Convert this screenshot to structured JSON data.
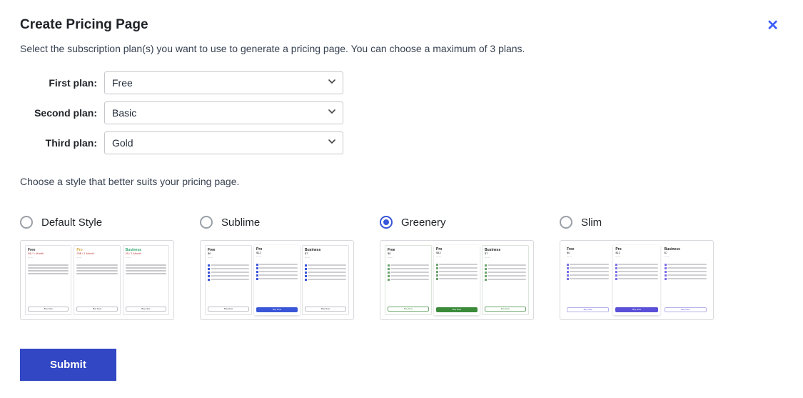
{
  "dialog": {
    "title": "Create Pricing Page",
    "subtitle": "Select the subscription plan(s) you want to use to generate a pricing page. You can choose a maximum of 3 plans.",
    "close_icon": "✕"
  },
  "plans": {
    "rows": [
      {
        "label": "First plan:",
        "value": "Free"
      },
      {
        "label": "Second plan:",
        "value": "Basic"
      },
      {
        "label": "Third plan:",
        "value": "Gold"
      }
    ]
  },
  "style_section": {
    "hint": "Choose a style that better suits your pricing page.",
    "selected_index": 2,
    "options": [
      {
        "label": "Default Style",
        "accent": "#ffffff",
        "card_border": "#e2e2e6",
        "cards": [
          {
            "title": "Free",
            "title_color": "#333333",
            "sub": "0$ / 1 Month",
            "sub_color": "#c23b3b",
            "btn_style": "outline"
          },
          {
            "title": "Pro",
            "title_color": "#d8a63a",
            "sub": "20$ / 1 Month",
            "sub_color": "#c23b3b",
            "btn_style": "outline"
          },
          {
            "title": "Business",
            "title_color": "#2fa56f",
            "sub": "35 / 1 Month",
            "sub_color": "#c23b3b",
            "btn_style": "outline"
          }
        ]
      },
      {
        "label": "Sublime",
        "accent": "#3955d8",
        "card_border": "#e2e2e6",
        "cards": [
          {
            "title": "Free",
            "title_color": "#222222",
            "sub": "$0",
            "sub_color": "#222222",
            "btn_style": "outline",
            "elevated": false
          },
          {
            "title": "Pro",
            "title_color": "#222222",
            "sub": "$12",
            "sub_color": "#222222",
            "btn_style": "fill-blue",
            "elevated": true
          },
          {
            "title": "Business",
            "title_color": "#222222",
            "sub": "$7",
            "sub_color": "#222222",
            "btn_style": "outline",
            "elevated": false
          }
        ]
      },
      {
        "label": "Greenery",
        "accent": "#3a8a3a",
        "card_border": "#d9e6d9",
        "cards": [
          {
            "title": "Free",
            "title_color": "#222222",
            "sub": "$0",
            "sub_color": "#222222",
            "btn_style": "outline-green",
            "elevated": false
          },
          {
            "title": "Pro",
            "title_color": "#222222",
            "sub": "$42",
            "sub_color": "#222222",
            "btn_style": "fill-green",
            "elevated": true
          },
          {
            "title": "Business",
            "title_color": "#222222",
            "sub": "$7",
            "sub_color": "#222222",
            "btn_style": "outline-green",
            "elevated": false
          }
        ]
      },
      {
        "label": "Slim",
        "accent": "#5a4fd8",
        "card_border": "transparent",
        "cards": [
          {
            "title": "Free",
            "title_color": "#222222",
            "sub": "$0",
            "sub_color": "#222222",
            "btn_style": "outline-purple",
            "elevated": false,
            "noborder": true
          },
          {
            "title": "Pro",
            "title_color": "#222222",
            "sub": "$12",
            "sub_color": "#222222",
            "btn_style": "fill-purple",
            "elevated": true
          },
          {
            "title": "Business",
            "title_color": "#222222",
            "sub": "$7",
            "sub_color": "#222222",
            "btn_style": "outline-purple",
            "elevated": false,
            "noborder": true
          }
        ]
      }
    ]
  },
  "actions": {
    "submit_label": "Submit"
  },
  "colors": {
    "primary": "#3147c4",
    "close": "#3b5bfd",
    "border": "#d9d9de",
    "text": "#1f2328"
  }
}
